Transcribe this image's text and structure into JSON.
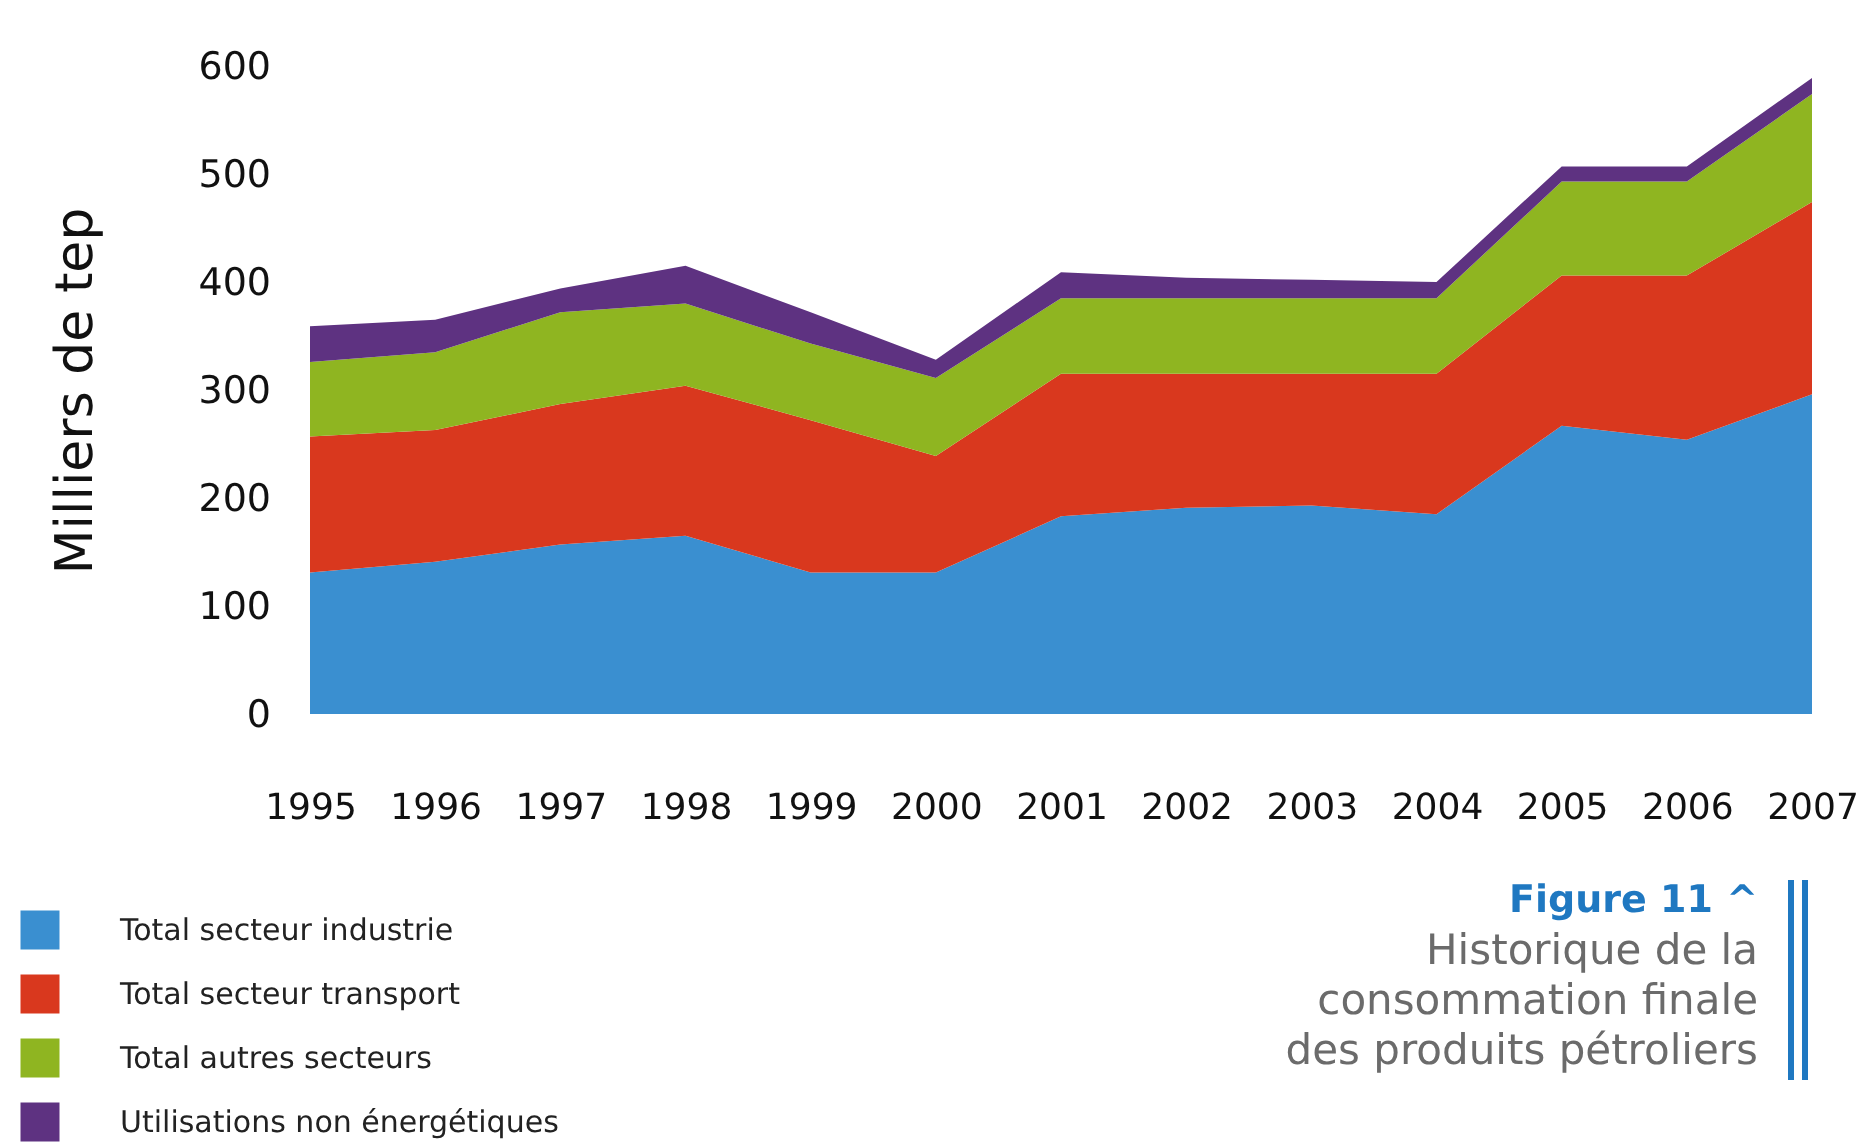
{
  "chart_data": {
    "type": "area",
    "stacked": true,
    "ylabel": "Milliers de tep",
    "categories": [
      "1995",
      "1996",
      "1997",
      "1998",
      "1999",
      "2000",
      "2001",
      "2002",
      "2003",
      "2004",
      "2005",
      "2006",
      "2007"
    ],
    "ylim": [
      0,
      600
    ],
    "yticks": [
      0,
      100,
      200,
      300,
      400,
      500,
      600
    ],
    "grid": false,
    "legend": "bottom left",
    "series": [
      {
        "name": "Total secteur industrie",
        "color": "#3a8fd0",
        "values": [
          131,
          141,
          157,
          165,
          131,
          131,
          183,
          191,
          193,
          185,
          267,
          254,
          296
        ]
      },
      {
        "name": "Total secteur transport",
        "color": "#d9381e",
        "values": [
          126,
          122,
          130,
          139,
          141,
          108,
          132,
          124,
          122,
          130,
          139,
          152,
          178
        ]
      },
      {
        "name": "Total autres secteurs",
        "color": "#8fb521",
        "values": [
          69,
          72,
          85,
          76,
          71,
          72,
          70,
          70,
          70,
          70,
          87,
          87,
          100
        ]
      },
      {
        "name": "Utilisations non énergétiques",
        "color": "#5e3281",
        "values": [
          33,
          30,
          22,
          35,
          29,
          17,
          24,
          19,
          17,
          15,
          14,
          14,
          15
        ]
      }
    ],
    "annotations": [
      "Figure 11 ^",
      "Historique de la consommation finale des produits pétroliers"
    ]
  }
}
